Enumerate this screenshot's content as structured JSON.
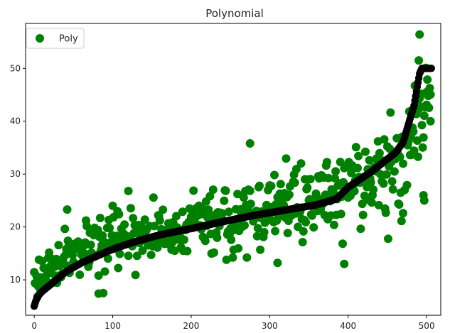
{
  "chart_data": {
    "type": "scatter",
    "title": "Polynomial",
    "xlabel": "",
    "ylabel": "",
    "xlim": [
      -11,
      518
    ],
    "ylim": [
      3.3,
      58.5
    ],
    "xticks": [
      0,
      100,
      200,
      300,
      400,
      500
    ],
    "yticks": [
      10,
      20,
      30,
      40,
      50
    ],
    "grid": false,
    "legend": {
      "position": "top-left",
      "entries": [
        "Poly"
      ]
    },
    "colors": {
      "scatter": "#008000",
      "fit": "#000000"
    },
    "scatter_series": {
      "name": "Poly",
      "n": 506,
      "seed": 17,
      "trend": [
        [
          0,
          10
        ],
        [
          40,
          14
        ],
        [
          100,
          17
        ],
        [
          200,
          20
        ],
        [
          300,
          23
        ],
        [
          380,
          26
        ],
        [
          450,
          31
        ],
        [
          480,
          36
        ],
        [
          505,
          46
        ]
      ],
      "spread": [
        [
          0,
          2.0
        ],
        [
          200,
          2.8
        ],
        [
          400,
          3.5
        ],
        [
          505,
          5.5
        ]
      ],
      "outliers": [
        [
          42,
          23.3
        ],
        [
          120,
          26.8
        ],
        [
          275,
          35.8
        ],
        [
          310,
          13.2
        ],
        [
          395,
          13.0
        ],
        [
          470,
          22.6
        ],
        [
          490,
          51.5
        ],
        [
          491,
          56.4
        ],
        [
          497,
          25.0
        ],
        [
          496,
          26.0
        ],
        [
          505,
          40.0
        ],
        [
          500,
          45.5
        ],
        [
          82,
          7.4
        ],
        [
          88,
          7.5
        ],
        [
          100,
          24.0
        ],
        [
          340,
          32.0
        ]
      ]
    },
    "fit_series": {
      "name": "",
      "x": [
        0,
        2,
        5,
        10,
        20,
        40,
        60,
        80,
        100,
        130,
        160,
        200,
        240,
        280,
        320,
        360,
        385,
        400,
        430,
        460,
        470,
        478,
        484,
        488,
        491,
        494,
        498,
        502,
        506
      ],
      "y": [
        5.0,
        6.0,
        7.0,
        7.8,
        9.0,
        11.5,
        13.2,
        14.5,
        15.8,
        17.3,
        18.5,
        19.7,
        21.0,
        22.2,
        23.2,
        24.2,
        25.3,
        27.5,
        30.5,
        34.0,
        36.0,
        40.0,
        43.0,
        46.5,
        49.0,
        50.0,
        50.0,
        50.0,
        50.0
      ]
    }
  }
}
